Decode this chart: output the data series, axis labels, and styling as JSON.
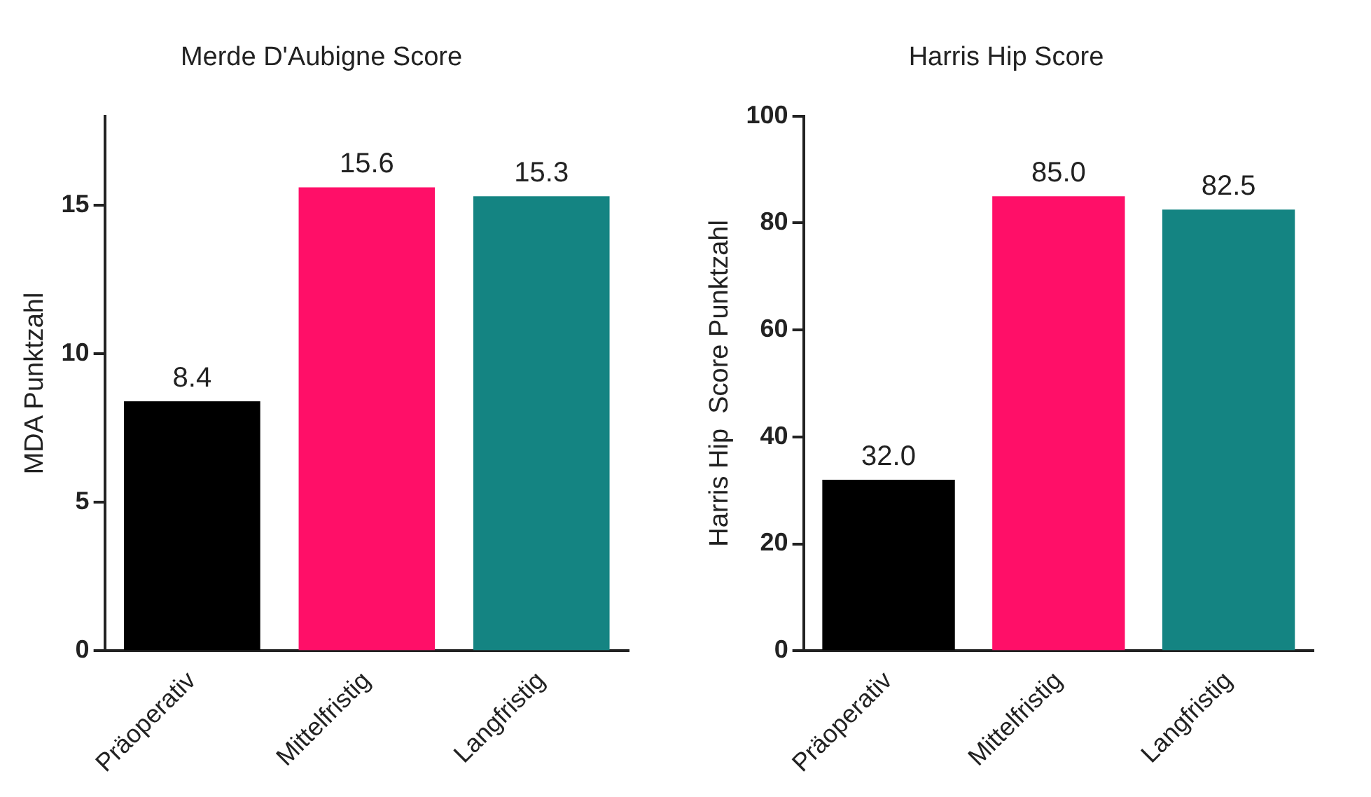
{
  "chart_data": [
    {
      "type": "bar",
      "title": "Merde D'Aubigne Score",
      "ylabel": "MDA Punktzahl",
      "categories": [
        "Präoperativ",
        "Mittelfristig",
        "Langfristig"
      ],
      "values": [
        8.4,
        15.6,
        15.3
      ],
      "value_labels": [
        "8.4",
        "15.6",
        "15.3"
      ],
      "colors": [
        "#000000",
        "#ff0f68",
        "#148482"
      ],
      "ylim": [
        0,
        18
      ],
      "yticks": [
        0,
        5,
        10,
        15
      ],
      "grid": false,
      "legend": false
    },
    {
      "type": "bar",
      "title": "Harris Hip Score",
      "ylabel": "Harris Hip  Score Punktzahl",
      "categories": [
        "Präoperativ",
        "Mittelfristig",
        "Langfristig"
      ],
      "values": [
        32.0,
        85.0,
        82.5
      ],
      "value_labels": [
        "32.0",
        "85.0",
        "82.5"
      ],
      "colors": [
        "#000000",
        "#ff0f68",
        "#148482"
      ],
      "ylim": [
        0,
        100
      ],
      "yticks": [
        0,
        20,
        40,
        60,
        80,
        100
      ],
      "grid": false,
      "legend": false
    }
  ]
}
